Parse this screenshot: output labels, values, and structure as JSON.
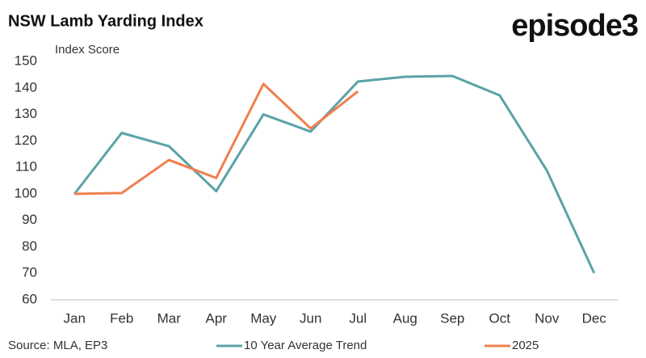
{
  "chart_data": {
    "type": "line",
    "title": "NSW Lamb Yarding Index",
    "brand": "episode3",
    "y_label": "Index Score",
    "source": "Source: MLA, EP3",
    "categories": [
      "Jan",
      "Feb",
      "Mar",
      "Apr",
      "May",
      "Jun",
      "Jul",
      "Aug",
      "Sep",
      "Oct",
      "Nov",
      "Dec"
    ],
    "series": [
      {
        "name": "10 Year Average Trend",
        "color": "#5aa3a8",
        "values": [
          100,
          123,
          118,
          101,
          130,
          123.5,
          142.4,
          144.2,
          144.5,
          137.2,
          108.8,
          70.1
        ]
      },
      {
        "name": "2025",
        "color": "#f07f4f",
        "values": [
          100,
          100.3,
          112.8,
          106,
          141.5,
          124.7,
          138.7,
          null,
          null,
          null,
          null,
          null
        ]
      }
    ],
    "ylim": [
      60,
      150
    ],
    "yticks": [
      60,
      70,
      80,
      90,
      100,
      110,
      120,
      130,
      140,
      150
    ],
    "grid": false,
    "legend": "bottom"
  }
}
